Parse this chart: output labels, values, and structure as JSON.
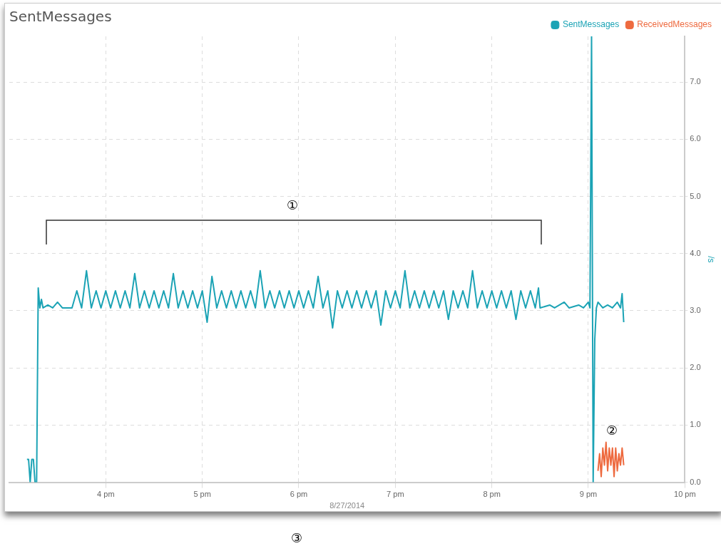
{
  "chart_data": {
    "type": "line",
    "title": "SentMessages",
    "xlabel": "8/27/2014",
    "ylabel": "/s",
    "xlim": [
      "2014-08-27T15:00",
      "2014-08-27T22:00"
    ],
    "xticks": [
      {
        "value": "2014-08-27T16:00",
        "label": "4 pm"
      },
      {
        "value": "2014-08-27T17:00",
        "label": "5 pm"
      },
      {
        "value": "2014-08-27T18:00",
        "label": "6 pm"
      },
      {
        "value": "2014-08-27T19:00",
        "label": "7 pm"
      },
      {
        "value": "2014-08-27T20:00",
        "label": "8 pm"
      },
      {
        "value": "2014-08-27T21:00",
        "label": "9 pm"
      },
      {
        "value": "2014-08-27T22:00",
        "label": "10 pm"
      }
    ],
    "ylim": [
      0,
      7.8
    ],
    "yticks": [
      {
        "value": 0,
        "label": "0.0"
      },
      {
        "value": 1,
        "label": "1.0"
      },
      {
        "value": 2,
        "label": "2.0"
      },
      {
        "value": 3,
        "label": "3.0"
      },
      {
        "value": 4,
        "label": "4.0"
      },
      {
        "value": 5,
        "label": "5.0"
      },
      {
        "value": 6,
        "label": "6.0"
      },
      {
        "value": 7,
        "label": "7.0"
      }
    ],
    "grid": true,
    "legend": "top right",
    "marker": "none",
    "line_style": "solid",
    "series": [
      {
        "name": "SentMessages",
        "color": "#1ba3b5",
        "x": [
          "2014-08-27T15:11",
          "2014-08-27T15:12",
          "2014-08-27T15:13",
          "2014-08-27T15:14",
          "2014-08-27T15:15",
          "2014-08-27T15:16",
          "2014-08-27T15:17",
          "2014-08-27T15:18",
          "2014-08-27T15:19",
          "2014-08-27T15:20",
          "2014-08-27T15:21",
          "2014-08-27T15:24",
          "2014-08-27T15:27",
          "2014-08-27T15:30",
          "2014-08-27T15:33",
          "2014-08-27T15:36",
          "2014-08-27T15:39",
          "2014-08-27T15:42",
          "2014-08-27T15:45",
          "2014-08-27T15:48",
          "2014-08-27T15:51",
          "2014-08-27T15:54",
          "2014-08-27T15:57",
          "2014-08-27T16:00",
          "2014-08-27T16:03",
          "2014-08-27T16:06",
          "2014-08-27T16:09",
          "2014-08-27T16:12",
          "2014-08-27T16:15",
          "2014-08-27T16:18",
          "2014-08-27T16:21",
          "2014-08-27T16:24",
          "2014-08-27T16:27",
          "2014-08-27T16:30",
          "2014-08-27T16:33",
          "2014-08-27T16:36",
          "2014-08-27T16:39",
          "2014-08-27T16:42",
          "2014-08-27T16:45",
          "2014-08-27T16:48",
          "2014-08-27T16:51",
          "2014-08-27T16:54",
          "2014-08-27T16:57",
          "2014-08-27T17:00",
          "2014-08-27T17:03",
          "2014-08-27T17:06",
          "2014-08-27T17:09",
          "2014-08-27T17:12",
          "2014-08-27T17:15",
          "2014-08-27T17:18",
          "2014-08-27T17:21",
          "2014-08-27T17:24",
          "2014-08-27T17:27",
          "2014-08-27T17:30",
          "2014-08-27T17:33",
          "2014-08-27T17:36",
          "2014-08-27T17:39",
          "2014-08-27T17:42",
          "2014-08-27T17:45",
          "2014-08-27T17:48",
          "2014-08-27T17:51",
          "2014-08-27T17:54",
          "2014-08-27T17:57",
          "2014-08-27T18:00",
          "2014-08-27T18:03",
          "2014-08-27T18:06",
          "2014-08-27T18:09",
          "2014-08-27T18:12",
          "2014-08-27T18:15",
          "2014-08-27T18:18",
          "2014-08-27T18:21",
          "2014-08-27T18:24",
          "2014-08-27T18:27",
          "2014-08-27T18:30",
          "2014-08-27T18:33",
          "2014-08-27T18:36",
          "2014-08-27T18:39",
          "2014-08-27T18:42",
          "2014-08-27T18:45",
          "2014-08-27T18:48",
          "2014-08-27T18:51",
          "2014-08-27T18:54",
          "2014-08-27T18:57",
          "2014-08-27T19:00",
          "2014-08-27T19:03",
          "2014-08-27T19:06",
          "2014-08-27T19:09",
          "2014-08-27T19:12",
          "2014-08-27T19:15",
          "2014-08-27T19:18",
          "2014-08-27T19:21",
          "2014-08-27T19:24",
          "2014-08-27T19:27",
          "2014-08-27T19:30",
          "2014-08-27T19:33",
          "2014-08-27T19:36",
          "2014-08-27T19:39",
          "2014-08-27T19:42",
          "2014-08-27T19:45",
          "2014-08-27T19:48",
          "2014-08-27T19:51",
          "2014-08-27T19:54",
          "2014-08-27T19:57",
          "2014-08-27T20:00",
          "2014-08-27T20:03",
          "2014-08-27T20:06",
          "2014-08-27T20:09",
          "2014-08-27T20:12",
          "2014-08-27T20:15",
          "2014-08-27T20:18",
          "2014-08-27T20:21",
          "2014-08-27T20:24",
          "2014-08-27T20:27",
          "2014-08-27T20:29",
          "2014-08-27T20:30",
          "2014-08-27T20:36",
          "2014-08-27T20:39",
          "2014-08-27T20:45",
          "2014-08-27T20:48",
          "2014-08-27T20:54",
          "2014-08-27T20:57",
          "2014-08-27T21:00",
          "2014-08-27T21:01",
          "2014-08-27T21:02",
          "2014-08-27T21:03",
          "2014-08-27T21:04",
          "2014-08-27T21:05",
          "2014-08-27T21:06",
          "2014-08-27T21:09",
          "2014-08-27T21:12",
          "2014-08-27T21:15",
          "2014-08-27T21:18",
          "2014-08-27T21:20",
          "2014-08-27T21:21",
          "2014-08-27T21:22"
        ],
        "values": [
          0.4,
          0.4,
          0,
          0.4,
          0.4,
          0,
          0,
          3.4,
          3.05,
          3.2,
          3.05,
          3.1,
          3.05,
          3.15,
          3.05,
          3.05,
          3.05,
          3.35,
          3.05,
          3.7,
          3.05,
          3.35,
          3.05,
          3.35,
          3.05,
          3.35,
          3.05,
          3.35,
          3.05,
          3.65,
          3.05,
          3.35,
          3.05,
          3.35,
          3.05,
          3.35,
          3.05,
          3.65,
          3.05,
          3.35,
          3.05,
          3.35,
          3.05,
          3.35,
          2.8,
          3.6,
          3.05,
          3.35,
          3.05,
          3.35,
          3.05,
          3.35,
          3.05,
          3.35,
          3.05,
          3.7,
          3.05,
          3.35,
          3.05,
          3.35,
          3.05,
          3.35,
          3.05,
          3.35,
          3.05,
          3.35,
          3.05,
          3.6,
          3.05,
          3.35,
          2.7,
          3.35,
          3.05,
          3.35,
          3.05,
          3.35,
          3.05,
          3.35,
          3.05,
          3.35,
          2.75,
          3.35,
          3.05,
          3.35,
          3.05,
          3.7,
          3.05,
          3.35,
          3.05,
          3.35,
          3.05,
          3.35,
          3.05,
          3.35,
          2.85,
          3.35,
          3.05,
          3.35,
          3.05,
          3.7,
          3.05,
          3.35,
          3.05,
          3.35,
          3.05,
          3.35,
          3.05,
          3.35,
          2.85,
          3.35,
          3.05,
          3.35,
          3.05,
          3.4,
          3.05,
          3.1,
          3.05,
          3.15,
          3.05,
          3.1,
          3.05,
          3.15,
          3.05,
          7.8,
          0,
          2.5,
          3.05,
          3.15,
          3.05,
          3.1,
          3.05,
          3.15,
          3.05,
          3.3,
          2.8
        ]
      },
      {
        "name": "ReceivedMessages",
        "color": "#ee6a3f",
        "x": [
          "2014-08-27T21:06",
          "2014-08-27T21:07",
          "2014-08-27T21:08",
          "2014-08-27T21:09",
          "2014-08-27T21:10",
          "2014-08-27T21:11",
          "2014-08-27T21:12",
          "2014-08-27T21:13",
          "2014-08-27T21:14",
          "2014-08-27T21:15",
          "2014-08-27T21:16",
          "2014-08-27T21:17",
          "2014-08-27T21:18",
          "2014-08-27T21:19",
          "2014-08-27T21:20",
          "2014-08-27T21:21",
          "2014-08-27T21:22"
        ],
        "values": [
          0.2,
          0.5,
          0.1,
          0.6,
          0.3,
          0.7,
          0.2,
          0.6,
          0.3,
          0.6,
          0.1,
          0.6,
          0.2,
          0.5,
          0.3,
          0.6,
          0.3
        ]
      }
    ],
    "annotations": [
      "①",
      "②",
      "③"
    ]
  }
}
